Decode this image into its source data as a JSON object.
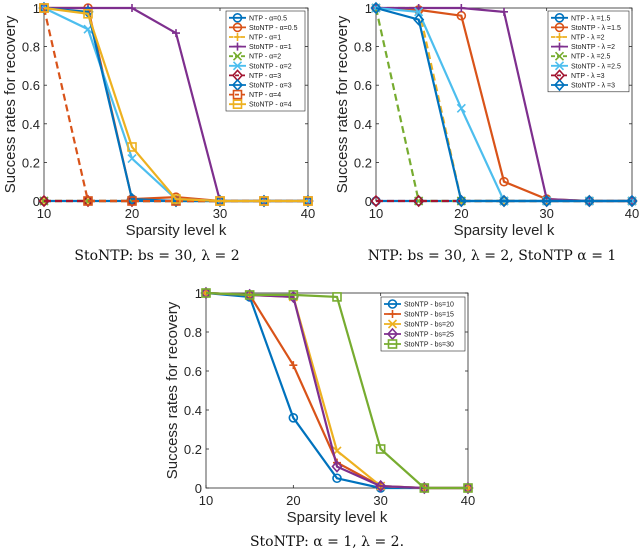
{
  "chart_data": [
    {
      "type": "line",
      "caption": "StoNTP: bs = 30, λ = 2",
      "xlabel": "Sparsity level k",
      "ylabel": "Success rates for recovery",
      "xlim": [
        10,
        40
      ],
      "ylim": [
        0,
        1
      ],
      "xticks": [
        "10",
        "20",
        "30",
        "40"
      ],
      "yticks": [
        "0",
        "0.2",
        "0.4",
        "0.6",
        "0.8",
        "1"
      ],
      "x": [
        10,
        15,
        20,
        25,
        30,
        35,
        40
      ],
      "legend_position": "top-right",
      "series": [
        {
          "name": "NTP - α=0.5",
          "color": "#0072BD",
          "marker": "circle",
          "dash": "solid",
          "values": [
            0,
            0,
            0,
            0,
            0,
            0,
            0
          ]
        },
        {
          "name": "StoNTP - α=0.5",
          "color": "#D95319",
          "marker": "circle",
          "dash": "solid",
          "values": [
            1,
            1,
            0.01,
            0.02,
            0,
            0,
            0
          ]
        },
        {
          "name": "NTP - α=1",
          "color": "#EDB120",
          "marker": "plus",
          "dash": "dashed",
          "values": [
            0,
            0,
            0,
            0,
            0,
            0,
            0
          ]
        },
        {
          "name": "StoNTP - α=1",
          "color": "#7E2F8E",
          "marker": "plus",
          "dash": "solid",
          "values": [
            1,
            1,
            1,
            0.87,
            0,
            0,
            0
          ]
        },
        {
          "name": "NTP - α=2",
          "color": "#77AC30",
          "marker": "x",
          "dash": "dashed",
          "values": [
            0,
            0,
            0,
            0,
            0,
            0,
            0
          ]
        },
        {
          "name": "StoNTP - α=2",
          "color": "#4DBEEE",
          "marker": "x",
          "dash": "solid",
          "values": [
            1,
            0.89,
            0.22,
            0.01,
            0,
            0,
            0
          ]
        },
        {
          "name": "NTP - α=3",
          "color": "#A2142F",
          "marker": "diamond",
          "dash": "dashed",
          "values": [
            0,
            0,
            0,
            0,
            0,
            0,
            0
          ]
        },
        {
          "name": "StoNTP - α=3",
          "color": "#0072BD",
          "marker": "diamond",
          "dash": "solid",
          "values": [
            1,
            0.98,
            0.01,
            0,
            0,
            0,
            0
          ]
        },
        {
          "name": "NTP - α=4",
          "color": "#D95319",
          "marker": "square",
          "dash": "dashed",
          "values": [
            1,
            0,
            0,
            0,
            0,
            0,
            0
          ]
        },
        {
          "name": "StoNTP - α=4",
          "color": "#EDB120",
          "marker": "square",
          "dash": "solid",
          "values": [
            1,
            0.97,
            0.28,
            0.01,
            0,
            0,
            0
          ]
        }
      ]
    },
    {
      "type": "line",
      "caption": "NTP: bs = 30, λ = 2, StoNTP α = 1",
      "xlabel": "Sparsity level k",
      "ylabel": "Success rates for recovery",
      "xlim": [
        10,
        40
      ],
      "ylim": [
        0,
        1
      ],
      "xticks": [
        "10",
        "20",
        "30",
        "40"
      ],
      "yticks": [
        "0",
        "0.2",
        "0.4",
        "0.6",
        "0.8",
        "1"
      ],
      "x": [
        10,
        15,
        20,
        25,
        30,
        35,
        40
      ],
      "legend_position": "top-right",
      "series": [
        {
          "name": "NTP - λ =1.5",
          "color": "#0072BD",
          "marker": "circle",
          "dash": "solid",
          "values": [
            0,
            0,
            0,
            0,
            0,
            0,
            0
          ]
        },
        {
          "name": "StoNTP - λ =1.5",
          "color": "#D95319",
          "marker": "circle",
          "dash": "solid",
          "values": [
            1,
            0.99,
            0.96,
            0.1,
            0.01,
            0,
            0
          ]
        },
        {
          "name": "NTP - λ =2",
          "color": "#EDB120",
          "marker": "plus",
          "dash": "dashed",
          "values": [
            1,
            1,
            0,
            0,
            0,
            0,
            0
          ]
        },
        {
          "name": "StoNTP - λ =2",
          "color": "#7E2F8E",
          "marker": "plus",
          "dash": "solid",
          "values": [
            1,
            1,
            1,
            0.98,
            0.01,
            0,
            0
          ]
        },
        {
          "name": "NTP - λ =2.5",
          "color": "#77AC30",
          "marker": "x",
          "dash": "dashed",
          "values": [
            1,
            0,
            0,
            0,
            0,
            0,
            0
          ]
        },
        {
          "name": "StoNTP - λ =2.5",
          "color": "#4DBEEE",
          "marker": "x",
          "dash": "solid",
          "values": [
            1,
            0.98,
            0.48,
            0,
            0,
            0,
            0
          ]
        },
        {
          "name": "NTP - λ =3",
          "color": "#A2142F",
          "marker": "diamond",
          "dash": "dashed",
          "values": [
            0,
            0,
            0,
            0,
            0,
            0,
            0
          ]
        },
        {
          "name": "StoNTP - λ =3",
          "color": "#0072BD",
          "marker": "diamond",
          "dash": "solid",
          "values": [
            1,
            0.94,
            0,
            0,
            0,
            0,
            0
          ]
        }
      ]
    },
    {
      "type": "line",
      "caption": "StoNTP: α = 1, λ = 2.",
      "xlabel": "Sparsity level k",
      "ylabel": "Success rates for recovery",
      "xlim": [
        10,
        40
      ],
      "ylim": [
        0,
        1
      ],
      "xticks": [
        "10",
        "20",
        "30",
        "40"
      ],
      "yticks": [
        "0",
        "0.2",
        "0.4",
        "0.6",
        "0.8",
        "1"
      ],
      "x": [
        10,
        15,
        20,
        25,
        30,
        35,
        40
      ],
      "legend_position": "top-right",
      "series": [
        {
          "name": "StoNTP - bs=10",
          "color": "#0072BD",
          "marker": "circle",
          "dash": "solid",
          "values": [
            1,
            0.98,
            0.36,
            0.05,
            0,
            0,
            0
          ]
        },
        {
          "name": "StoNTP - bs=15",
          "color": "#D95319",
          "marker": "plus",
          "dash": "solid",
          "values": [
            1,
            0.99,
            0.63,
            0.13,
            0.01,
            0,
            0
          ]
        },
        {
          "name": "StoNTP - bs=20",
          "color": "#EDB120",
          "marker": "x",
          "dash": "solid",
          "values": [
            1,
            0.99,
            0.98,
            0.19,
            0.01,
            0,
            0
          ]
        },
        {
          "name": "StoNTP - bs=25",
          "color": "#7E2F8E",
          "marker": "diamond",
          "dash": "solid",
          "values": [
            1,
            0.99,
            0.98,
            0.11,
            0.01,
            0,
            0
          ]
        },
        {
          "name": "StoNTP - bs=30",
          "color": "#77AC30",
          "marker": "square",
          "dash": "solid",
          "values": [
            1,
            0.99,
            0.99,
            0.98,
            0.2,
            0,
            0
          ]
        }
      ]
    }
  ]
}
